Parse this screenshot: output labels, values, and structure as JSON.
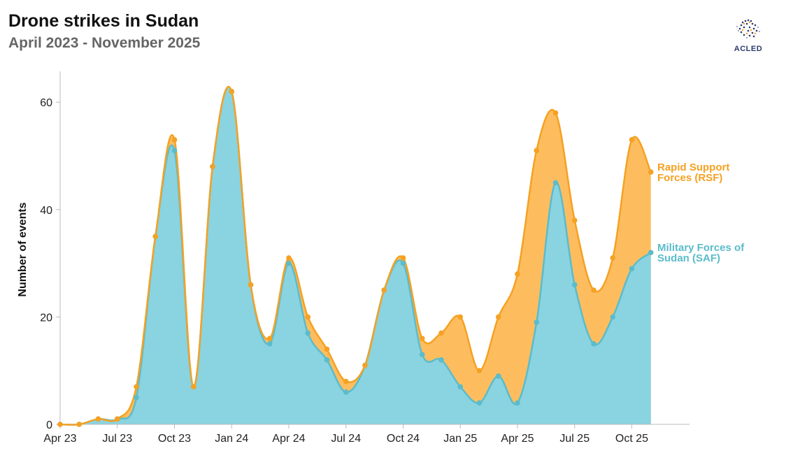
{
  "title": "Drone strikes in Sudan",
  "subtitle": "April 2023 - November 2025",
  "logo": {
    "text": "ACLED"
  },
  "colors": {
    "rsf": "#f5a122",
    "rsf_fill": "#fdbd5f",
    "saf": "#5bbccb",
    "saf_fill": "#8ad3e0",
    "axis": "#bbbbbb"
  },
  "chart_data": {
    "type": "area",
    "title": "Drone strikes in Sudan",
    "subtitle": "April 2023 - November 2025",
    "ylabel": "Number of events",
    "xlabel": "",
    "ylim": [
      0,
      65
    ],
    "y_ticks": [
      0,
      20,
      40,
      60
    ],
    "x_ticks": [
      {
        "label": "Apr 23",
        "date": "2023-04"
      },
      {
        "label": "Jul 23",
        "date": "2023-07"
      },
      {
        "label": "Oct 23",
        "date": "2023-10"
      },
      {
        "label": "Jan 24",
        "date": "2024-01"
      },
      {
        "label": "Apr 24",
        "date": "2024-04"
      },
      {
        "label": "Jul 24",
        "date": "2024-07"
      },
      {
        "label": "Oct 24",
        "date": "2024-10"
      },
      {
        "label": "Jan 25",
        "date": "2025-01"
      },
      {
        "label": "Apr 25",
        "date": "2025-04"
      },
      {
        "label": "Jul 25",
        "date": "2025-07"
      },
      {
        "label": "Oct 25",
        "date": "2025-10"
      }
    ],
    "x": [
      "2023-04",
      "2023-05",
      "2023-06",
      "2023-07",
      "2023-08",
      "2023-09",
      "2023-10",
      "2023-11",
      "2023-12",
      "2024-01",
      "2024-02",
      "2024-03",
      "2024-04",
      "2024-05",
      "2024-06",
      "2024-07",
      "2024-08",
      "2024-09",
      "2024-10",
      "2024-11",
      "2024-12",
      "2025-01",
      "2025-02",
      "2025-03",
      "2025-04",
      "2025-05",
      "2025-06",
      "2025-07",
      "2025-08",
      "2025-09",
      "2025-10",
      "2025-11"
    ],
    "series": [
      {
        "name": "Rapid Support Forces (RSF)",
        "label_lines": [
          "Rapid Support",
          "Forces (RSF)"
        ],
        "values": [
          0,
          0,
          1,
          1,
          7,
          35,
          53,
          7,
          48,
          62,
          26,
          16,
          31,
          20,
          14,
          8,
          11,
          25,
          31,
          16,
          17,
          20,
          10,
          20,
          28,
          51,
          58,
          38,
          25,
          31,
          53,
          47
        ]
      },
      {
        "name": "Military Forces of Sudan (SAF)",
        "label_lines": [
          "Military Forces of",
          "Sudan (SAF)"
        ],
        "values": [
          0,
          0,
          1,
          1,
          5,
          35,
          51,
          7,
          48,
          62,
          26,
          15,
          30,
          17,
          12,
          6,
          11,
          25,
          30,
          13,
          12,
          7,
          4,
          9,
          4,
          19,
          45,
          26,
          15,
          20,
          29,
          32
        ]
      }
    ],
    "grid": false,
    "legend": "inline-right"
  }
}
